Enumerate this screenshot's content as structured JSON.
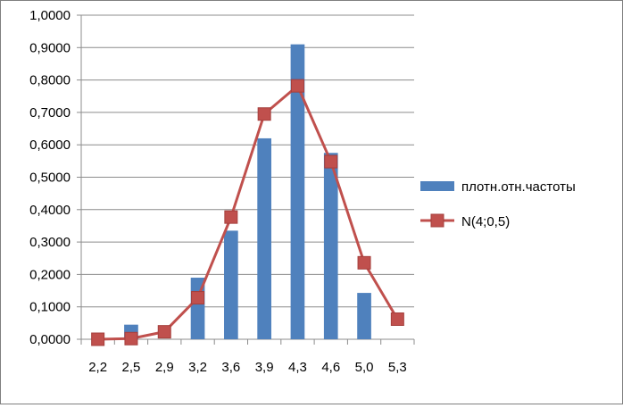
{
  "chart_data": {
    "type": "bar",
    "categories": [
      "2,2",
      "2,5",
      "2,9",
      "3,2",
      "3,6",
      "3,9",
      "4,3",
      "4,6",
      "5,0",
      "5,3"
    ],
    "series": [
      {
        "name": "плотн.отн.частоты",
        "kind": "bar",
        "color": "#4F81BD",
        "values": [
          0.0,
          0.045,
          0.0,
          0.19,
          0.335,
          0.62,
          0.91,
          0.575,
          0.143,
          0.0
        ]
      },
      {
        "name": "N(4;0,5)",
        "kind": "line",
        "marker": "square",
        "color": "#C0504D",
        "values": [
          0.0,
          0.002,
          0.023,
          0.128,
          0.377,
          0.695,
          0.782,
          0.548,
          0.236,
          0.062
        ]
      }
    ],
    "y_tick_labels": [
      "0,0000",
      "0,1000",
      "0,2000",
      "0,3000",
      "0,4000",
      "0,5000",
      "0,6000",
      "0,7000",
      "0,8000",
      "0,9000",
      "1,0000"
    ],
    "ylim": [
      0,
      1.0
    ],
    "y_step": 0.1,
    "grid": "horizontal",
    "legend_position": "right",
    "title": "",
    "xlabel": "",
    "ylabel": ""
  }
}
